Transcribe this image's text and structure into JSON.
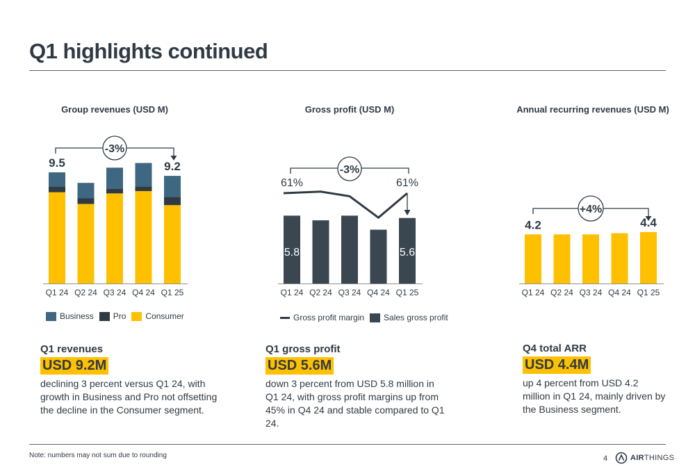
{
  "title": "Q1 highlights continued",
  "colors": {
    "consumer": "#ffc000",
    "pro": "#2f3a44",
    "business": "#3e6882",
    "gross": "#3a4650",
    "arr": "#ffc000",
    "text": "#2f3a44"
  },
  "chart_data": [
    {
      "type": "bar",
      "title": "Group revenues (USD M)",
      "stacked": true,
      "categories": [
        "Q1 24",
        "Q2 24",
        "Q3 24",
        "Q4 24",
        "Q1 25"
      ],
      "series": [
        {
          "name": "Consumer",
          "values": [
            7.8,
            6.8,
            7.7,
            7.9,
            6.7
          ]
        },
        {
          "name": "Pro",
          "values": [
            0.5,
            0.5,
            0.4,
            0.4,
            0.7
          ]
        },
        {
          "name": "Business",
          "values": [
            1.2,
            1.3,
            1.8,
            2.0,
            1.8
          ]
        }
      ],
      "labels": {
        "first": "9.5",
        "last": "9.2"
      },
      "change": "-3%",
      "legend": [
        "Business",
        "Pro",
        "Consumer"
      ],
      "ylim": [
        0,
        10.5
      ]
    },
    {
      "type": "bar",
      "title": "Gross profit (USD M)",
      "categories": [
        "Q1 24",
        "Q2 24",
        "Q3 24",
        "Q4 24",
        "Q1 25"
      ],
      "series": [
        {
          "name": "Sales gross profit",
          "values": [
            5.8,
            5.4,
            5.8,
            4.6,
            5.6
          ]
        },
        {
          "name": "Gross profit margin",
          "values": [
            61,
            62,
            59,
            45,
            61
          ]
        }
      ],
      "bar_labels": {
        "first": "5.8",
        "last": "5.6"
      },
      "margin_labels": {
        "first": "61%",
        "last": "61%"
      },
      "change": "-3%",
      "legend": [
        "Gross profit margin",
        "Sales gross profit"
      ],
      "ylim": [
        0,
        10.5
      ]
    },
    {
      "type": "bar",
      "title": "Annual recurring revenues (USD M)",
      "categories": [
        "Q1 24",
        "Q2 24",
        "Q3 24",
        "Q4 24",
        "Q1 25"
      ],
      "series": [
        {
          "name": "ARR",
          "values": [
            4.2,
            4.2,
            4.2,
            4.3,
            4.4
          ]
        }
      ],
      "labels": {
        "first": "4.2",
        "last": "4.4"
      },
      "change": "+4%",
      "ylim": [
        0,
        10.5
      ]
    }
  ],
  "kpis": [
    {
      "heading": "Q1 revenues",
      "value": "USD 9.2M",
      "text": "declining 3 percent versus Q1 24, with growth in Business and Pro not offsetting the decline in the Consumer segment."
    },
    {
      "heading": "Q1 gross profit",
      "value": "USD 5.6M",
      "text": "down 3 percent from USD 5.8 million in Q1 24, with gross profit margins up from 45% in Q4 24 and stable compared to Q1 24."
    },
    {
      "heading": "Q4 total ARR",
      "value": "USD 4.4M",
      "text": "up 4 percent from USD 4.2 million in Q1 24, mainly driven by the Business segment."
    }
  ],
  "footer": {
    "note": "Note: numbers may not sum due to rounding",
    "page": "4",
    "logo_bold": "AIR",
    "logo_rest": "THINGS"
  }
}
